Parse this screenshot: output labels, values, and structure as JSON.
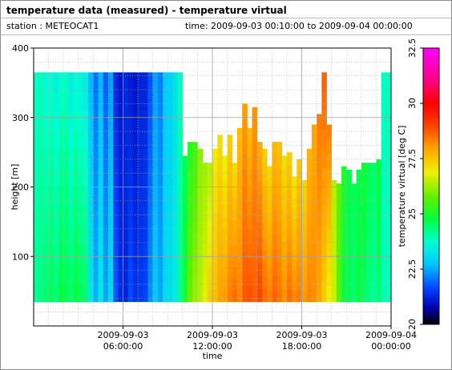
{
  "header": {
    "title": "temperature data (measured) - temperature virtual",
    "station": "station : METEOCAT1",
    "time_range": "time: 2009-09-03 00:10:00 to 2009-09-04 00:00:00"
  },
  "chart_data": {
    "type": "heatmap",
    "xlabel": "time",
    "ylabel": "height [m]",
    "colorbar_label": "temperature virtual [deg C]",
    "x_ticks": [
      {
        "hour": 6,
        "line1": "2009-09-03",
        "line2": "06:00:00"
      },
      {
        "hour": 12,
        "line1": "2009-09-03",
        "line2": "12:00:00"
      },
      {
        "hour": 18,
        "line1": "2009-09-03",
        "line2": "18:00:00"
      },
      {
        "hour": 24,
        "line1": "2009-09-04",
        "line2": "00:00:00"
      }
    ],
    "xlim_hours": [
      0,
      24
    ],
    "y_ticks": [
      100,
      200,
      300,
      400
    ],
    "ylim": [
      0,
      400
    ],
    "colorbar_ticks": [
      20,
      22.5,
      25,
      27.5,
      30,
      32.5
    ],
    "colorbar_range": [
      20,
      32.5
    ],
    "grid": true,
    "data_height_min": 35,
    "column_hours": [
      0.17,
      0.5,
      0.83,
      1.17,
      1.5,
      1.83,
      2.17,
      2.5,
      2.83,
      3.17,
      3.5,
      3.83,
      4.17,
      4.5,
      4.83,
      5.17,
      5.5,
      5.83,
      6.17,
      6.5,
      6.83,
      7.17,
      7.5,
      7.83,
      8.17,
      8.5,
      8.83,
      9.17,
      9.5,
      9.83,
      10.17,
      10.5,
      10.83,
      11.17,
      11.5,
      11.83,
      12.17,
      12.5,
      12.83,
      13.17,
      13.5,
      13.83,
      14.17,
      14.5,
      14.83,
      15.17,
      15.5,
      15.83,
      16.17,
      16.5,
      16.83,
      17.17,
      17.5,
      17.83,
      18.17,
      18.5,
      18.83,
      19.17,
      19.5,
      19.83,
      20.17,
      20.5,
      20.83,
      21.17,
      21.5,
      21.83,
      22.17,
      22.5,
      22.83,
      23.17,
      23.5,
      23.83
    ],
    "column_top_height": [
      365,
      365,
      365,
      365,
      365,
      365,
      365,
      365,
      365,
      365,
      365,
      365,
      365,
      365,
      365,
      365,
      365,
      365,
      365,
      365,
      365,
      365,
      365,
      365,
      365,
      365,
      365,
      365,
      365,
      365,
      245,
      265,
      265,
      255,
      235,
      235,
      255,
      275,
      245,
      275,
      235,
      285,
      320,
      285,
      315,
      265,
      255,
      230,
      265,
      265,
      245,
      250,
      215,
      240,
      210,
      255,
      290,
      305,
      365,
      290,
      210,
      205,
      230,
      225,
      205,
      225,
      235,
      235,
      235,
      240,
      365,
      365
    ],
    "column_temp_bottom": [
      24.2,
      24.3,
      24.5,
      24.6,
      24.4,
      24.8,
      24.7,
      24.5,
      24.8,
      24.6,
      24.5,
      23.3,
      22.6,
      23.4,
      22.5,
      23.1,
      21.8,
      21.3,
      21.2,
      21.7,
      21.4,
      21.5,
      21.6,
      22.3,
      22.8,
      22.5,
      23.1,
      23.2,
      23.4,
      24.2,
      25.0,
      25.8,
      26.2,
      26.4,
      26.8,
      27.4,
      27.6,
      28.0,
      28.1,
      28.4,
      28.6,
      28.3,
      28.8,
      28.9,
      28.7,
      29.0,
      28.6,
      28.4,
      28.7,
      28.5,
      28.2,
      28.6,
      28.3,
      28.4,
      28.1,
      28.3,
      28.2,
      27.9,
      27.3,
      26.8,
      26.6,
      25.6,
      24.8,
      24.6,
      24.4,
      24.8,
      24.5,
      24.3,
      24.1,
      24.4,
      24.0,
      23.9
    ],
    "column_temp_top": [
      23.8,
      23.9,
      23.6,
      23.7,
      23.5,
      23.7,
      23.8,
      23.4,
      23.6,
      23.5,
      23.4,
      22.6,
      22.0,
      22.6,
      21.8,
      22.4,
      21.3,
      21.0,
      21.3,
      21.1,
      21.0,
      21.2,
      21.2,
      21.7,
      22.4,
      22.1,
      22.8,
      22.9,
      23.2,
      23.9,
      24.6,
      25.1,
      25.4,
      26.1,
      26.2,
      26.4,
      26.9,
      27.1,
      26.8,
      27.3,
      27.1,
      27.6,
      28.0,
      27.6,
      28.1,
      27.8,
      27.3,
      27.2,
      27.6,
      27.5,
      27.1,
      27.3,
      27.0,
      27.4,
      27.2,
      27.7,
      27.9,
      28.4,
      28.7,
      28.4,
      26.4,
      25.8,
      25.1,
      24.7,
      24.6,
      24.7,
      24.9,
      24.6,
      24.5,
      24.8,
      23.8,
      23.9
    ]
  }
}
